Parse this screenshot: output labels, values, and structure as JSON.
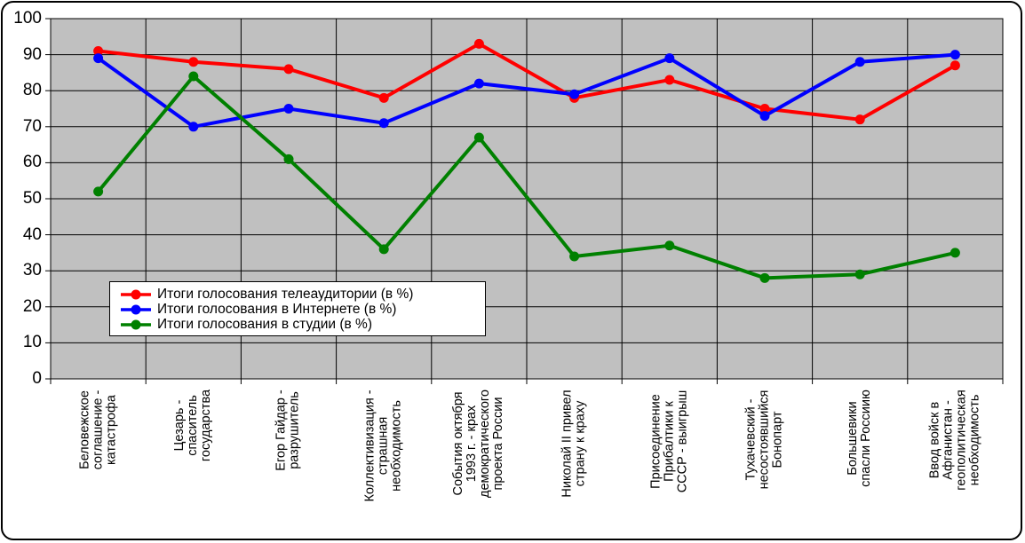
{
  "chart_data": {
    "type": "line",
    "title": "",
    "xlabel": "",
    "ylabel": "",
    "ylim": [
      0,
      100
    ],
    "y_ticks": [
      0,
      10,
      20,
      30,
      40,
      50,
      60,
      70,
      80,
      90,
      100
    ],
    "grid": true,
    "legend_position": "inside-left-middle",
    "plot_bg": "#c0c0c0",
    "grid_color": "#000000",
    "frame_bg": "#ffffff",
    "categories": [
      [
        "Беловежское",
        "соглашение -",
        "катастрофа"
      ],
      [
        "Цезарь -",
        "спаситель",
        "государства"
      ],
      [
        "Егор Гайдар -",
        "разрушитель"
      ],
      [
        "Коллективизация -",
        "страшная",
        "необходимость"
      ],
      [
        "События октября",
        "1993 г. - крах",
        "демократического",
        "проекта России"
      ],
      [
        "Николай II привел",
        "страну к краху"
      ],
      [
        "Присоединение",
        "Прибалтики к",
        "СССР - выигрыш"
      ],
      [
        "Тухачевский -",
        "несостоявшийся",
        "Бонопарт"
      ],
      [
        "Большевики",
        "спасли Россиию"
      ],
      [
        "Ввод войск в",
        "Афганистан -",
        "геополитическая",
        "необходимость"
      ]
    ],
    "series": [
      {
        "name": "Итоги голосования телеаудитории (в %)",
        "color": "#ff0000",
        "marker": "circle",
        "values": [
          91,
          88,
          86,
          78,
          93,
          78,
          83,
          75,
          72,
          87
        ]
      },
      {
        "name": "Итоги голосования в Интернете (в %)",
        "color": "#0000ff",
        "marker": "circle",
        "values": [
          89,
          70,
          75,
          71,
          82,
          79,
          89,
          73,
          88,
          90
        ]
      },
      {
        "name": "Итоги голосования в студии (в %)",
        "color": "#008000",
        "marker": "circle",
        "values": [
          52,
          84,
          61,
          36,
          67,
          34,
          37,
          28,
          29,
          35
        ]
      }
    ]
  }
}
